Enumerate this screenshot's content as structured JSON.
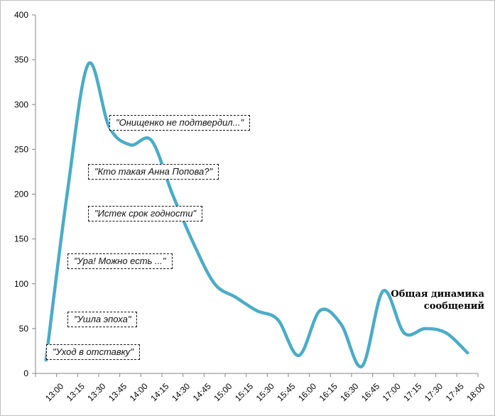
{
  "chart_data": {
    "type": "line",
    "title": "",
    "xlabel": "",
    "ylabel": "",
    "ylim": [
      0,
      400
    ],
    "y_ticks": [
      0,
      50,
      100,
      150,
      200,
      250,
      300,
      350,
      400
    ],
    "categories": [
      "13:00",
      "13:15",
      "13:30",
      "13:45",
      "14:00",
      "14:15",
      "14:30",
      "14:45",
      "15:00",
      "15:15",
      "15:30",
      "15:45",
      "16:00",
      "16:15",
      "16:30",
      "16:45",
      "17:00",
      "17:15",
      "17:30",
      "17:45",
      "18:00"
    ],
    "series": [
      {
        "name": "Общая динамика сообщений",
        "name_lines": [
          "Общая динамика",
          "сообщений"
        ],
        "color": "#4bacc6",
        "values": [
          15,
          200,
          345,
          275,
          255,
          260,
          200,
          145,
          100,
          85,
          70,
          60,
          20,
          70,
          55,
          8,
          92,
          45,
          50,
          45,
          23
        ]
      }
    ],
    "annotations": [
      {
        "text": "\"Онищенко не подтвердил...\"",
        "at": "13:45",
        "level": 280
      },
      {
        "text": "\"Кто такая Анна Попова?\"",
        "at": "13:30",
        "level": 225
      },
      {
        "text": "\"Истек срок годности\"",
        "at": "13:30",
        "level": 178
      },
      {
        "text": "\"Ура! Можно есть ...\"",
        "at": "13:15",
        "level": 125
      },
      {
        "text": "\"Ушла эпоха\"",
        "at": "13:15",
        "level": 60
      },
      {
        "text": "\"Уход в отставку\"",
        "at": "13:00",
        "level": 24
      }
    ],
    "grid": false,
    "legend": "none"
  }
}
